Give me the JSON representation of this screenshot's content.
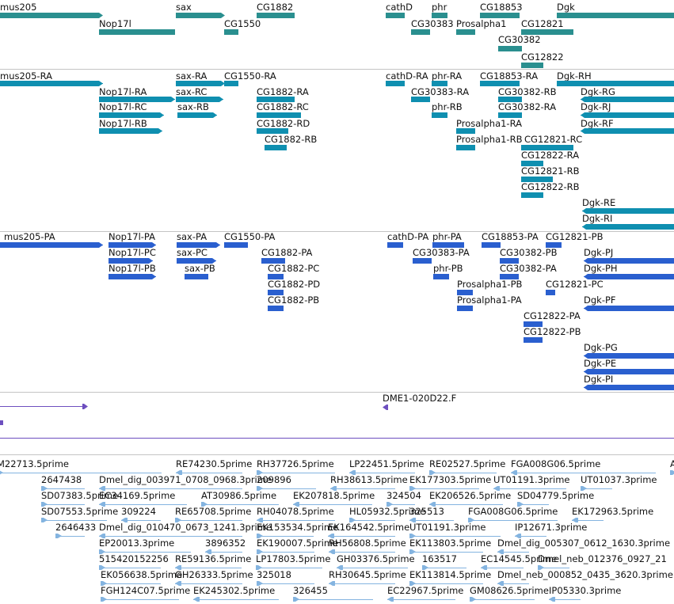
{
  "colors": {
    "gene": "#2a8f8f",
    "transcript": "#0f8fb0",
    "protein": "#2a5fcf",
    "clone": "#6d4fbf",
    "est": "#84b4e0",
    "separator": "#c4c4c4"
  },
  "tracks": {
    "genes": {
      "labels": [
        "mus205",
        "Nop17l",
        "sax",
        "CG1550",
        "CG1882",
        "cathD",
        "phr",
        "CG30383",
        "Prosalpha1",
        "CG18853",
        "CG12821",
        "Dgk",
        "CG30382",
        "CG12822"
      ]
    },
    "transcripts": {
      "labels": [
        "mus205-RA",
        "sax-RA",
        "CG1550-RA",
        "Nop17l-RA",
        "sax-RC",
        "CG1882-RA",
        "Nop17l-RC",
        "sax-RB",
        "CG1882-RC",
        "Nop17l-RB",
        "CG1882-RD",
        "CG1882-RB",
        "cathD-RA",
        "phr-RA",
        "CG18853-RA",
        "Dgk-RH",
        "CG30383-RA",
        "CG30382-RB",
        "Dgk-RG",
        "phr-RB",
        "CG30382-RA",
        "Dgk-RJ",
        "Prosalpha1-RA",
        "Dgk-RF",
        "Prosalpha1-RB",
        "CG12821-RC",
        "CG12822-RA",
        "CG12821-RB",
        "CG12822-RB",
        "Dgk-RE",
        "Dgk-RI"
      ]
    },
    "proteins": {
      "labels": [
        "mus205-PA",
        "Nop17l-PA",
        "sax-PA",
        "CG1550-PA",
        "Nop17l-PC",
        "sax-PC",
        "CG1882-PA",
        "Nop17l-PB",
        "sax-PB",
        "CG1882-PC",
        "CG1882-PD",
        "CG1882-PB",
        "cathD-PA",
        "phr-PA",
        "CG18853-PA",
        "CG12821-PB",
        "CG30383-PA",
        "CG30382-PB",
        "Dgk-PJ",
        "phr-PB",
        "CG30382-PA",
        "Dgk-PH",
        "Prosalpha1-PB",
        "CG12821-PC",
        "Prosalpha1-PA",
        "Dgk-PF",
        "CG12822-PA",
        "CG12822-PB",
        "Dgk-PG",
        "Dgk-PE",
        "Dgk-PI"
      ]
    },
    "clones": {
      "labels": [
        "DME1-020D22.F"
      ]
    },
    "ests": {
      "rows": [
        [
          "M22713.5prime",
          "RE74230.5prime",
          "RH37726.5prime",
          "LP22451.5prime",
          "RE02527.5prime",
          "FGA008G06.5prime",
          "A"
        ],
        [
          "2647438",
          "Dmel_dig_003971_0708_0968.3prime",
          "209896",
          "RH38613.5prime",
          "EK177303.5prime",
          "UT01191.3prime",
          "UT01037.3prime"
        ],
        [
          "SD07383.5prime",
          "EC34169.5prime",
          "AT30986.5prime",
          "EK207818.5prime",
          "324504",
          "EK206526.5prime",
          "SD04779.5prime"
        ],
        [
          "SD07553.5prime",
          "309224",
          "RE65708.5prime",
          "RH04078.5prime",
          "HL05932.5prime",
          "325513",
          "FGA008G06.5prime",
          "EK172963.5prime"
        ],
        [
          "2646433",
          "Dmel_dig_010470_0673_1241.3prime",
          "EK153534.5prime",
          "EK164542.5prime",
          "UT01191.3prime",
          "IP12671.3prime"
        ],
        [
          "EP20013.3prime",
          "3896352",
          "EK190007.5prime",
          "RH56808.5prime",
          "EK113803.5prime",
          "Dmel_dig_005307_0612_1630.3prime"
        ],
        [
          "515420152256",
          "RE59136.5prime",
          "LP17803.5prime",
          "GH03376.5prime",
          "163517",
          "EC14545.5prime",
          "Dmel_neb_012376_0927_21"
        ],
        [
          "EK056638.5prime",
          "GH26333.5prime",
          "325018",
          "RH30645.5prime",
          "EK113814.5prime",
          "Dmel_neb_000852_0435_3620.3prime"
        ],
        [
          "FGH124C07.5prime",
          "EK245302.5prime",
          "326455",
          "EC22967.5prime",
          "GM08626.5prime",
          "IP05330.3prime"
        ]
      ]
    }
  }
}
